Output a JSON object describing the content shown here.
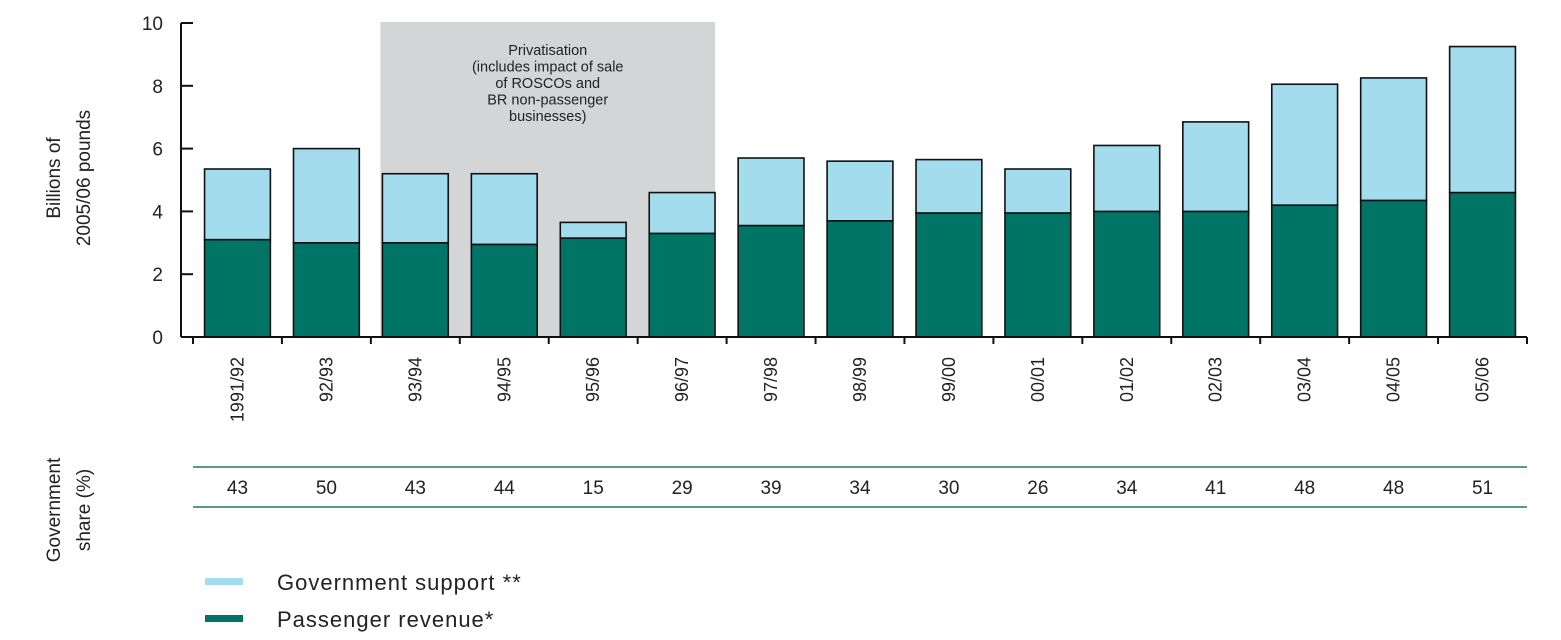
{
  "chart_data": {
    "type": "bar",
    "stacked": true,
    "ylabel_line1": "Billions of",
    "ylabel_line2": "2005/06 pounds",
    "ylim": [
      0,
      10
    ],
    "yticks": [
      "0",
      "2",
      "4",
      "6",
      "8",
      "10"
    ],
    "categories": [
      "1991/92",
      "92/93",
      "93/94",
      "94/95",
      "95/96",
      "96/97",
      "97/98",
      "98/99",
      "99/00",
      "00/01",
      "01/02",
      "02/03",
      "03/04",
      "04/05",
      "05/06"
    ],
    "series": [
      {
        "name": "Passenger revenue*",
        "color": "#007565",
        "values": [
          3.1,
          3.0,
          3.0,
          2.95,
          3.15,
          3.3,
          3.55,
          3.7,
          3.95,
          3.95,
          4.0,
          4.0,
          4.2,
          4.35,
          4.6
        ]
      },
      {
        "name": "Government support **",
        "color": "#a3dcec",
        "values": [
          2.25,
          3.0,
          2.2,
          2.25,
          0.5,
          1.3,
          2.15,
          1.9,
          1.7,
          1.4,
          2.1,
          2.85,
          3.85,
          3.9,
          4.65
        ]
      }
    ],
    "annotation": {
      "lines": [
        "Privatisation",
        "(includes impact of sale",
        "of ROSCOs and",
        "BR non-passenger",
        "businesses)"
      ],
      "x_start": "93/94",
      "x_end": "96/97",
      "color": "#d4d5d7"
    },
    "share_label_line1": "Government",
    "share_label_line2": "share (%)",
    "government_share": [
      "43",
      "50",
      "43",
      "44",
      "15",
      "29",
      "39",
      "34",
      "30",
      "26",
      "34",
      "41",
      "48",
      "48",
      "51"
    ],
    "legend_position": "bottom-left",
    "legend": [
      {
        "label": "Government support **",
        "color": "#a3dcec"
      },
      {
        "label": "Passenger revenue*",
        "color": "#007565"
      }
    ]
  }
}
